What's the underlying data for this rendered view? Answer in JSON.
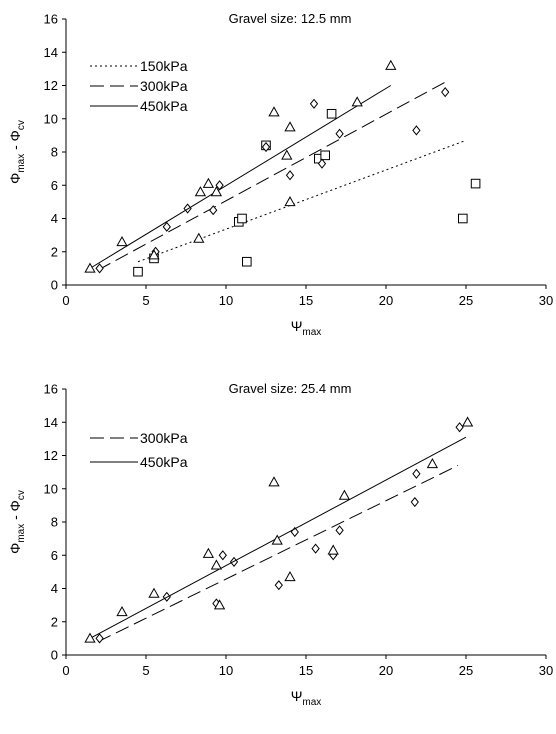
{
  "chart_data": [
    {
      "type": "scatter",
      "title": "Gravel size: 12.5 mm",
      "xlabel": "Ψmax",
      "ylabel": "Φmax - Φcv",
      "xlim": [
        0,
        30
      ],
      "ylim": [
        0,
        16
      ],
      "xticks": [
        0,
        5,
        10,
        15,
        20,
        25,
        30
      ],
      "yticks": [
        0,
        2,
        4,
        6,
        8,
        10,
        12,
        14,
        16
      ],
      "grid": false,
      "legend_position": "top-left",
      "series": [
        {
          "name": "150kPa",
          "marker": "square",
          "line": "dotted",
          "points": [
            [
              4.5,
              0.8
            ],
            [
              5.5,
              1.6
            ],
            [
              10.8,
              3.8
            ],
            [
              11.0,
              4.0
            ],
            [
              11.3,
              1.4
            ],
            [
              12.5,
              8.4
            ],
            [
              15.8,
              7.6
            ],
            [
              16.2,
              7.8
            ],
            [
              16.6,
              10.3
            ],
            [
              24.8,
              4.0
            ],
            [
              25.6,
              6.1
            ]
          ],
          "fit": [
            [
              4.5,
              1.4
            ],
            [
              25.0,
              8.7
            ]
          ]
        },
        {
          "name": "300kPa",
          "marker": "diamond",
          "line": "dashed",
          "points": [
            [
              2.1,
              1.0
            ],
            [
              5.6,
              2.0
            ],
            [
              6.3,
              3.5
            ],
            [
              7.6,
              4.6
            ],
            [
              9.2,
              4.5
            ],
            [
              9.6,
              6.0
            ],
            [
              12.5,
              8.3
            ],
            [
              14.0,
              6.6
            ],
            [
              15.5,
              10.9
            ],
            [
              16.0,
              7.3
            ],
            [
              17.1,
              9.1
            ],
            [
              21.9,
              9.3
            ],
            [
              23.7,
              11.6
            ]
          ],
          "fit": [
            [
              2.0,
              0.9
            ],
            [
              23.7,
              12.2
            ]
          ]
        },
        {
          "name": "450kPa",
          "marker": "triangle",
          "line": "solid",
          "points": [
            [
              1.5,
              1.0
            ],
            [
              3.5,
              2.6
            ],
            [
              5.5,
              1.8
            ],
            [
              8.3,
              2.8
            ],
            [
              8.4,
              5.6
            ],
            [
              8.9,
              6.1
            ],
            [
              9.4,
              5.6
            ],
            [
              13.0,
              10.4
            ],
            [
              13.8,
              7.8
            ],
            [
              14.0,
              9.5
            ],
            [
              14.0,
              5.0
            ],
            [
              18.2,
              11.0
            ],
            [
              20.3,
              13.2
            ]
          ],
          "fit": [
            [
              1.5,
              1.0
            ],
            [
              20.3,
              12.0
            ]
          ]
        }
      ]
    },
    {
      "type": "scatter",
      "title": "Gravel size: 25.4 mm",
      "xlabel": "Ψmax",
      "ylabel": "Φmax - Φcv",
      "xlim": [
        0,
        30
      ],
      "ylim": [
        0,
        16
      ],
      "xticks": [
        0,
        5,
        10,
        15,
        20,
        25,
        30
      ],
      "yticks": [
        0,
        2,
        4,
        6,
        8,
        10,
        12,
        14,
        16
      ],
      "grid": false,
      "legend_position": "top-left",
      "series": [
        {
          "name": "300kPa",
          "marker": "diamond",
          "line": "dashed",
          "points": [
            [
              2.1,
              1.0
            ],
            [
              6.3,
              3.5
            ],
            [
              9.4,
              3.1
            ],
            [
              9.8,
              6.0
            ],
            [
              10.5,
              5.6
            ],
            [
              13.3,
              4.2
            ],
            [
              14.3,
              7.4
            ],
            [
              15.6,
              6.4
            ],
            [
              16.7,
              6.0
            ],
            [
              17.1,
              7.5
            ],
            [
              21.8,
              9.2
            ],
            [
              21.9,
              10.9
            ],
            [
              24.6,
              13.7
            ]
          ],
          "fit": [
            [
              2.0,
              0.8
            ],
            [
              24.5,
              11.4
            ]
          ]
        },
        {
          "name": "450kPa",
          "marker": "triangle",
          "line": "solid",
          "points": [
            [
              1.5,
              1.0
            ],
            [
              3.5,
              2.6
            ],
            [
              5.5,
              3.7
            ],
            [
              8.9,
              6.1
            ],
            [
              9.4,
              5.4
            ],
            [
              9.6,
              3.0
            ],
            [
              13.0,
              10.4
            ],
            [
              13.2,
              6.9
            ],
            [
              14.0,
              4.7
            ],
            [
              16.7,
              6.3
            ],
            [
              17.4,
              9.6
            ],
            [
              22.9,
              11.5
            ],
            [
              25.1,
              14.0
            ]
          ],
          "fit": [
            [
              1.5,
              1.0
            ],
            [
              25.0,
              13.1
            ]
          ]
        }
      ]
    }
  ],
  "x_main": "Ψ",
  "x_sub": "max",
  "y_phi1": "Φ",
  "y_sub1": "max",
  "y_mid": " - ",
  "y_phi2": "Φ",
  "y_sub2": "cv"
}
